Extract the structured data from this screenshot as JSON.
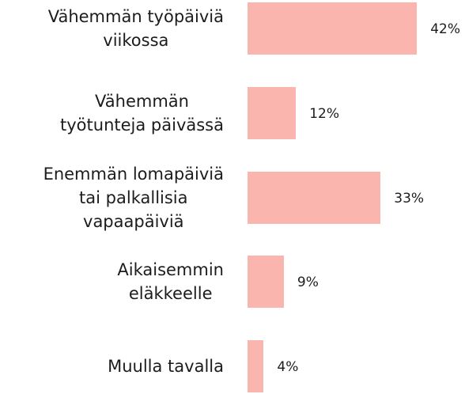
{
  "chart_data": {
    "type": "bar",
    "orientation": "horizontal",
    "categories": [
      "Vähemmän työpäiviä\nviikossa",
      "Vähemmän\ntyötunteja päivässä",
      "Enemmän lomapäiviä\ntai palkallisia\nvapaapäiviä",
      "Aikaisemmin\neläkkeelle",
      "Muulla tavalla"
    ],
    "values": [
      42,
      12,
      33,
      9,
      4
    ],
    "value_labels": [
      "42%",
      "12%",
      "33%",
      "9%",
      "4%"
    ],
    "color": "#f9b5ae"
  }
}
